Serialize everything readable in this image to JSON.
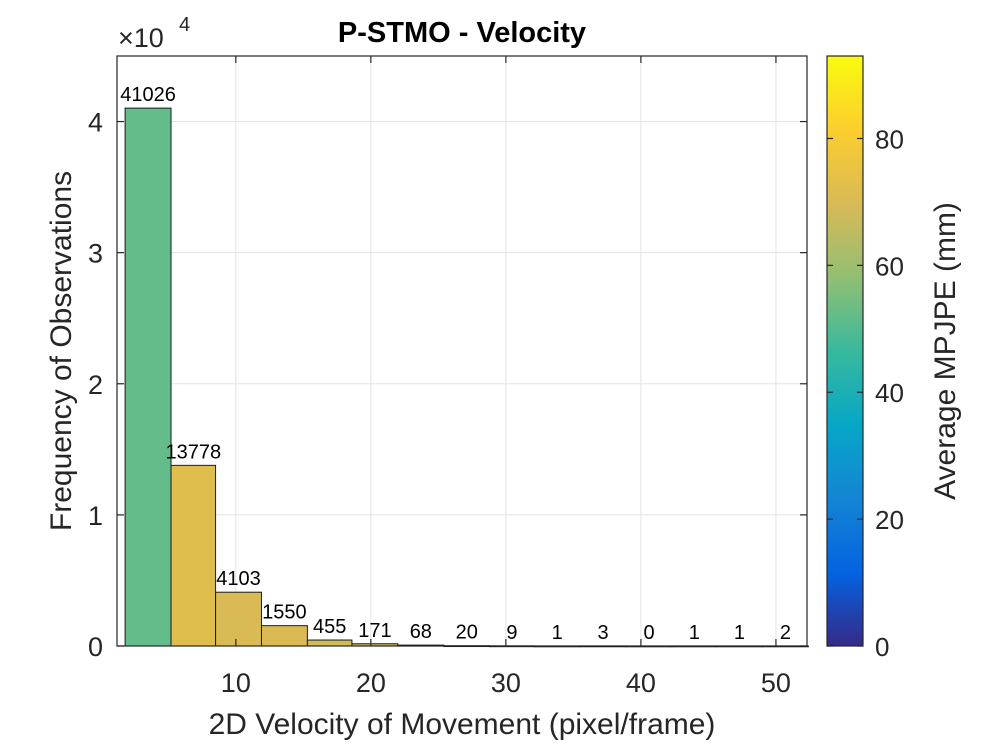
{
  "chart_data": {
    "type": "bar",
    "title": "P-STMO - Velocity",
    "xlabel": "2D Velocity of Movement (pixel/frame)",
    "ylabel": "Frequency of Observations",
    "y_exponent_label": "×10",
    "y_exponent_power": "4",
    "xlim": [
      1.2,
      52.3
    ],
    "ylim": [
      0,
      45000
    ],
    "xticks": [
      10,
      20,
      30,
      40,
      50
    ],
    "yticks": [
      0,
      1,
      2,
      3,
      4
    ],
    "grid": true,
    "bin_edges": [
      1.8,
      5.2,
      8.5,
      11.9,
      15.3,
      18.6,
      22.0,
      25.4,
      28.8,
      32.1,
      35.5,
      38.9,
      42.3,
      45.6,
      49.0,
      52.4
    ],
    "values": [
      41026,
      13778,
      4103,
      1550,
      455,
      171,
      68,
      20,
      9,
      1,
      3,
      0,
      1,
      1,
      2
    ],
    "value_labels": [
      "41026",
      "13778",
      "4103",
      "1550",
      "455",
      "171",
      "68",
      "20",
      "9",
      "1",
      "3",
      "0",
      "1",
      "1",
      "2"
    ],
    "bar_mpjpe": [
      52,
      72,
      70,
      70,
      68,
      68,
      68,
      68,
      68,
      68,
      68,
      68,
      68,
      68,
      68
    ],
    "colorbar": {
      "label": "Average MPJPE (mm)",
      "range": [
        0,
        93
      ],
      "ticks": [
        0,
        20,
        40,
        60,
        80
      ],
      "tick_labels": [
        "0",
        "20",
        "40",
        "60",
        "80"
      ],
      "colormap": "parula"
    }
  }
}
